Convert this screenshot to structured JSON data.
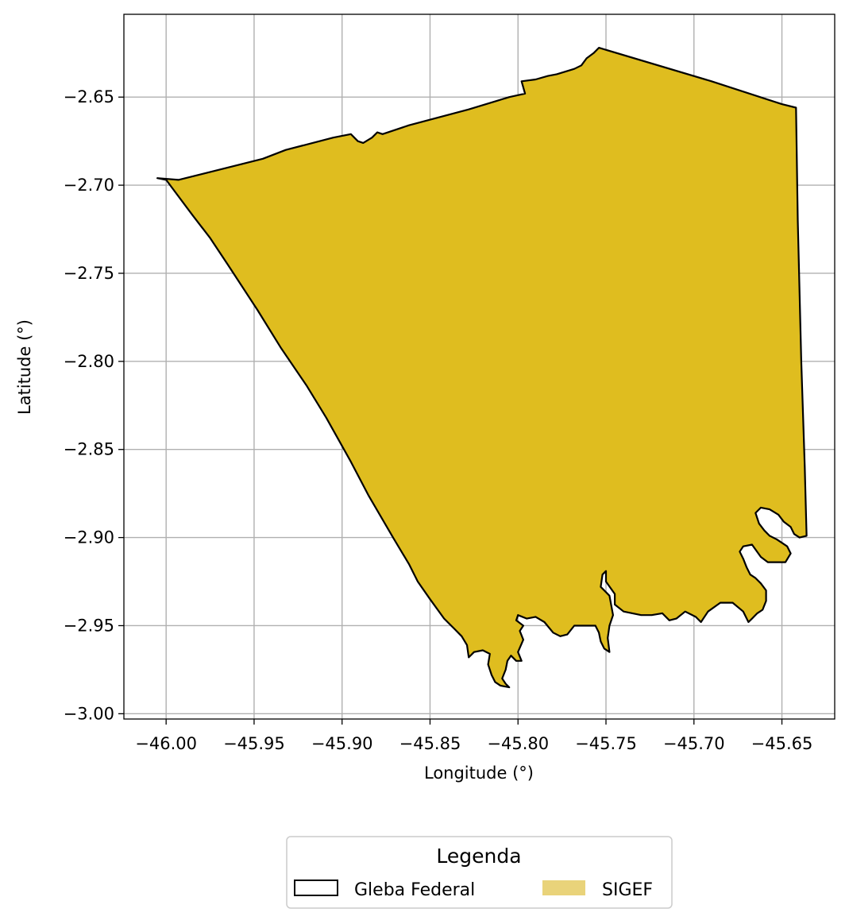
{
  "map": {
    "xlabel": "Longitude (°)",
    "ylabel": "Latitude (°)",
    "xlim": [
      -46.024,
      -45.62
    ],
    "ylim": [
      -3.003,
      -2.603
    ],
    "grid": true,
    "x_ticks": [
      {
        "value": -46.0,
        "label": "−46.00"
      },
      {
        "value": -45.95,
        "label": "−45.95"
      },
      {
        "value": -45.9,
        "label": "−45.90"
      },
      {
        "value": -45.85,
        "label": "−45.85"
      },
      {
        "value": -45.8,
        "label": "−45.80"
      },
      {
        "value": -45.75,
        "label": "−45.75"
      },
      {
        "value": -45.7,
        "label": "−45.70"
      },
      {
        "value": -45.65,
        "label": "−45.65"
      }
    ],
    "y_ticks": [
      {
        "value": -2.65,
        "label": "−2.65"
      },
      {
        "value": -2.7,
        "label": "−2.70"
      },
      {
        "value": -2.75,
        "label": "−2.75"
      },
      {
        "value": -2.8,
        "label": "−2.80"
      },
      {
        "value": -2.85,
        "label": "−2.85"
      },
      {
        "value": -2.9,
        "label": "−2.90"
      },
      {
        "value": -2.95,
        "label": "−2.95"
      },
      {
        "value": -3.0,
        "label": "−3.00"
      }
    ],
    "layers": [
      {
        "name": "SIGEF",
        "fill": "#dfbd1f",
        "stroke": "#000000",
        "outline": [
          [
            -46.005,
            -2.696
          ],
          [
            -45.993,
            -2.697
          ],
          [
            -45.965,
            -2.69
          ],
          [
            -45.945,
            -2.685
          ],
          [
            -45.932,
            -2.68
          ],
          [
            -45.905,
            -2.673
          ],
          [
            -45.895,
            -2.671
          ],
          [
            -45.891,
            -2.675
          ],
          [
            -45.888,
            -2.676
          ],
          [
            -45.883,
            -2.673
          ],
          [
            -45.88,
            -2.67
          ],
          [
            -45.877,
            -2.671
          ],
          [
            -45.862,
            -2.666
          ],
          [
            -45.828,
            -2.657
          ],
          [
            -45.805,
            -2.65
          ],
          [
            -45.796,
            -2.648
          ],
          [
            -45.798,
            -2.641
          ],
          [
            -45.79,
            -2.64
          ],
          [
            -45.783,
            -2.638
          ],
          [
            -45.778,
            -2.637
          ],
          [
            -45.768,
            -2.634
          ],
          [
            -45.764,
            -2.632
          ],
          [
            -45.761,
            -2.628
          ],
          [
            -45.757,
            -2.625
          ],
          [
            -45.754,
            -2.622
          ],
          [
            -45.69,
            -2.641
          ],
          [
            -45.65,
            -2.654
          ],
          [
            -45.642,
            -2.656
          ],
          [
            -45.641,
            -2.72
          ],
          [
            -45.639,
            -2.8
          ],
          [
            -45.637,
            -2.86
          ],
          [
            -45.636,
            -2.899
          ],
          [
            -45.64,
            -2.9
          ],
          [
            -45.643,
            -2.898
          ],
          [
            -45.645,
            -2.894
          ],
          [
            -45.649,
            -2.891
          ],
          [
            -45.652,
            -2.887
          ],
          [
            -45.657,
            -2.884
          ],
          [
            -45.662,
            -2.883
          ],
          [
            -45.665,
            -2.886
          ],
          [
            -45.663,
            -2.892
          ],
          [
            -45.66,
            -2.896
          ],
          [
            -45.657,
            -2.899
          ],
          [
            -45.653,
            -2.901
          ],
          [
            -45.65,
            -2.903
          ],
          [
            -45.647,
            -2.905
          ],
          [
            -45.645,
            -2.909
          ],
          [
            -45.648,
            -2.914
          ],
          [
            -45.655,
            -2.914
          ],
          [
            -45.658,
            -2.914
          ],
          [
            -45.662,
            -2.911
          ],
          [
            -45.667,
            -2.904
          ],
          [
            -45.672,
            -2.905
          ],
          [
            -45.674,
            -2.908
          ],
          [
            -45.672,
            -2.912
          ],
          [
            -45.67,
            -2.917
          ],
          [
            -45.668,
            -2.921
          ],
          [
            -45.665,
            -2.923
          ],
          [
            -45.662,
            -2.926
          ],
          [
            -45.659,
            -2.93
          ],
          [
            -45.659,
            -2.936
          ],
          [
            -45.661,
            -2.941
          ],
          [
            -45.664,
            -2.943
          ],
          [
            -45.667,
            -2.946
          ],
          [
            -45.669,
            -2.948
          ],
          [
            -45.672,
            -2.942
          ],
          [
            -45.678,
            -2.937
          ],
          [
            -45.685,
            -2.937
          ],
          [
            -45.692,
            -2.942
          ],
          [
            -45.696,
            -2.948
          ],
          [
            -45.699,
            -2.945
          ],
          [
            -45.705,
            -2.942
          ],
          [
            -45.71,
            -2.946
          ],
          [
            -45.714,
            -2.947
          ],
          [
            -45.718,
            -2.943
          ],
          [
            -45.724,
            -2.944
          ],
          [
            -45.73,
            -2.944
          ],
          [
            -45.735,
            -2.943
          ],
          [
            -45.74,
            -2.942
          ],
          [
            -45.745,
            -2.938
          ],
          [
            -45.745,
            -2.932
          ],
          [
            -45.75,
            -2.925
          ],
          [
            -45.75,
            -2.919
          ],
          [
            -45.752,
            -2.921
          ],
          [
            -45.753,
            -2.928
          ],
          [
            -45.748,
            -2.933
          ],
          [
            -45.746,
            -2.944
          ],
          [
            -45.748,
            -2.95
          ],
          [
            -45.749,
            -2.957
          ],
          [
            -45.748,
            -2.965
          ],
          [
            -45.751,
            -2.963
          ],
          [
            -45.753,
            -2.959
          ],
          [
            -45.754,
            -2.954
          ],
          [
            -45.756,
            -2.95
          ],
          [
            -45.76,
            -2.95
          ],
          [
            -45.768,
            -2.95
          ],
          [
            -45.772,
            -2.955
          ],
          [
            -45.776,
            -2.956
          ],
          [
            -45.78,
            -2.954
          ],
          [
            -45.785,
            -2.948
          ],
          [
            -45.79,
            -2.945
          ],
          [
            -45.795,
            -2.946
          ],
          [
            -45.8,
            -2.944
          ],
          [
            -45.801,
            -2.947
          ],
          [
            -45.797,
            -2.95
          ],
          [
            -45.799,
            -2.953
          ],
          [
            -45.797,
            -2.958
          ],
          [
            -45.8,
            -2.965
          ],
          [
            -45.798,
            -2.97
          ],
          [
            -45.801,
            -2.97
          ],
          [
            -45.804,
            -2.967
          ],
          [
            -45.806,
            -2.97
          ],
          [
            -45.807,
            -2.975
          ],
          [
            -45.809,
            -2.98
          ],
          [
            -45.807,
            -2.983
          ],
          [
            -45.805,
            -2.985
          ],
          [
            -45.81,
            -2.984
          ],
          [
            -45.813,
            -2.982
          ],
          [
            -45.815,
            -2.978
          ],
          [
            -45.817,
            -2.972
          ],
          [
            -45.816,
            -2.966
          ],
          [
            -45.82,
            -2.964
          ],
          [
            -45.825,
            -2.965
          ],
          [
            -45.828,
            -2.968
          ],
          [
            -45.829,
            -2.961
          ],
          [
            -45.832,
            -2.956
          ],
          [
            -45.836,
            -2.952
          ],
          [
            -45.842,
            -2.946
          ],
          [
            -45.85,
            -2.935
          ],
          [
            -45.857,
            -2.925
          ],
          [
            -45.862,
            -2.915
          ],
          [
            -45.871,
            -2.9
          ],
          [
            -45.885,
            -2.876
          ],
          [
            -45.895,
            -2.857
          ],
          [
            -45.909,
            -2.832
          ],
          [
            -45.92,
            -2.814
          ],
          [
            -45.935,
            -2.792
          ],
          [
            -45.948,
            -2.771
          ],
          [
            -45.965,
            -2.745
          ],
          [
            -45.975,
            -2.73
          ],
          [
            -45.985,
            -2.717
          ],
          [
            -46.0,
            -2.697
          ]
        ]
      }
    ]
  },
  "legend": {
    "title": "Legenda",
    "entries": [
      {
        "label": "Gleba Federal",
        "swatch": "outline",
        "edge": "#000000",
        "face": "none"
      },
      {
        "label": "SIGEF",
        "swatch": "fill",
        "face": "#e9d37a"
      }
    ]
  }
}
